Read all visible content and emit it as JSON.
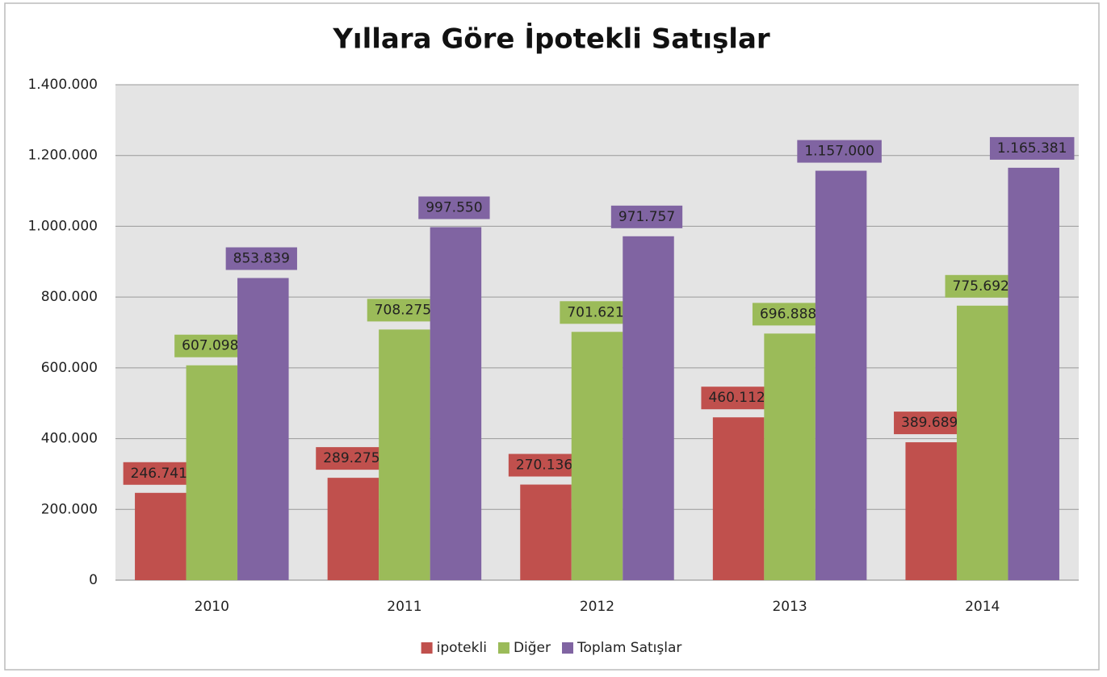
{
  "chart_data": {
    "type": "bar",
    "title": "Yıllara Göre İpotekli Satışlar",
    "categories": [
      "2010",
      "2011",
      "2012",
      "2013",
      "2014"
    ],
    "series": [
      {
        "name": "ipotekli",
        "color": "#c0504d",
        "values": [
          246741,
          289275,
          270136,
          460112,
          389689
        ],
        "value_labels": [
          "246.741",
          "289.275",
          "270.136",
          "460.112",
          "389.689"
        ]
      },
      {
        "name": "Diğer",
        "color": "#9bbb59",
        "values": [
          607098,
          708275,
          701621,
          696888,
          775692
        ],
        "value_labels": [
          "607.098",
          "708.275",
          "701.621",
          "696.888",
          "775.692"
        ]
      },
      {
        "name": "Toplam Satışlar",
        "color": "#8064a2",
        "values": [
          853839,
          997550,
          971757,
          1157000,
          1165381
        ],
        "value_labels": [
          "853.839",
          "997.550",
          "971.757",
          "1.157.000",
          "1.165.381"
        ]
      }
    ],
    "ylim": [
      0,
      1400000
    ],
    "yticks": [
      0,
      {
        "value": 200000,
        "label": "200.000"
      },
      {
        "value": 400000,
        "label": "400.000"
      },
      {
        "value": 600000,
        "label": "600.000"
      },
      {
        "value": 800000,
        "label": "800.000"
      },
      {
        "value": 1000000,
        "label": "1.000.000"
      },
      {
        "value": 1200000,
        "label": "1.200.000"
      },
      {
        "value": 1400000,
        "label": "1.400.000"
      }
    ],
    "grid": true,
    "legend": "bottom"
  }
}
